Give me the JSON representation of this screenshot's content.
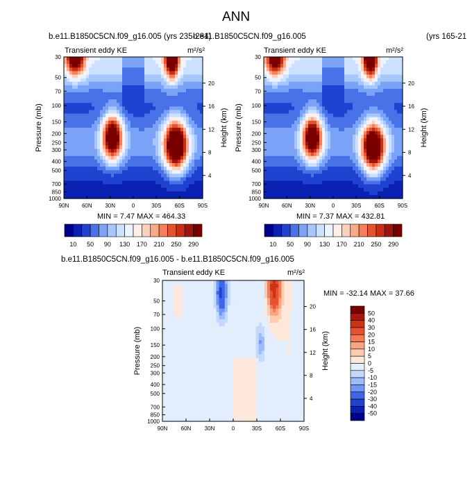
{
  "title": "ANN",
  "panels": [
    {
      "case_title": "b.e11.B1850C5CN.f09_g16.005 (yrs 235-284)",
      "field_label": "Transient eddy KE",
      "units": "m²/s²",
      "min_max": "MIN =   7.47  MAX = 464.33"
    },
    {
      "case_title": "b.e11.B1850C5CN.f09_g16.005",
      "case_title_right": "(yrs 165-21",
      "field_label": "Transient eddy KE",
      "units": "m²/s²",
      "min_max": "MIN =   7.37  MAX = 432.81"
    },
    {
      "case_title": "b.e11.B1850C5CN.f09_g16.005 - b.e11.B1850C5CN.f09_g16.005",
      "field_label": "Transient eddy KE",
      "units": "m²/s²",
      "min_max": "MIN = -32.14  MAX =  37.66"
    }
  ],
  "chart_data": [
    {
      "type": "heatmap",
      "title": "Transient eddy KE",
      "xlabel": "",
      "ylabel": "Pressure (mb)",
      "y2label": "Height (km)",
      "units": "m^2/s^2",
      "x_ticks": [
        "90N",
        "60N",
        "30N",
        "0",
        "30S",
        "60S",
        "90S"
      ],
      "y_ticks": [
        "30",
        "50",
        "70",
        "100",
        "150",
        "200",
        "250",
        "300",
        "400",
        "500",
        "700",
        "850",
        "1000"
      ],
      "y2_ticks": [
        "20",
        "16",
        "12",
        "8",
        "4"
      ],
      "levels": [
        10,
        30,
        50,
        70,
        90,
        110,
        130,
        150,
        170,
        190,
        210,
        230,
        250,
        270,
        290
      ],
      "colorbar_labels": [
        "10",
        "50",
        "90",
        "130",
        "170",
        "210",
        "250",
        "290"
      ],
      "features": [
        {
          "lat": 27,
          "pressure": 220,
          "value": 300
        },
        {
          "lat": -55,
          "pressure": 270,
          "value": 340
        },
        {
          "lat": -50,
          "pressure": 30,
          "value": 300
        },
        {
          "lat": 75,
          "pressure": 30,
          "value": 240
        }
      ],
      "min": 7.47,
      "max": 464.33
    },
    {
      "type": "heatmap",
      "title": "Transient eddy KE",
      "xlabel": "",
      "ylabel": "Pressure (mb)",
      "y2label": "Height (km)",
      "units": "m^2/s^2",
      "x_ticks": [
        "90N",
        "60N",
        "30N",
        "0",
        "30S",
        "60S",
        "90S"
      ],
      "y_ticks": [
        "30",
        "50",
        "70",
        "100",
        "150",
        "200",
        "250",
        "300",
        "400",
        "500",
        "700",
        "850",
        "1000"
      ],
      "y2_ticks": [
        "20",
        "16",
        "12",
        "8",
        "4"
      ],
      "levels": [
        10,
        30,
        50,
        70,
        90,
        110,
        130,
        150,
        170,
        190,
        210,
        230,
        250,
        270,
        290
      ],
      "colorbar_labels": [
        "10",
        "50",
        "90",
        "130",
        "170",
        "210",
        "250",
        "290"
      ],
      "features": [
        {
          "lat": 27,
          "pressure": 220,
          "value": 290
        },
        {
          "lat": -52,
          "pressure": 280,
          "value": 320
        },
        {
          "lat": -48,
          "pressure": 30,
          "value": 280
        },
        {
          "lat": 75,
          "pressure": 30,
          "value": 230
        }
      ],
      "min": 7.37,
      "max": 432.81
    },
    {
      "type": "heatmap",
      "title": "Transient eddy KE",
      "xlabel": "",
      "ylabel": "Pressure (mb)",
      "y2label": "Height (km)",
      "units": "m^2/s^2",
      "x_ticks": [
        "90N",
        "60N",
        "30N",
        "0",
        "30S",
        "60S",
        "90S"
      ],
      "y_ticks": [
        "30",
        "50",
        "70",
        "100",
        "150",
        "200",
        "250",
        "300",
        "400",
        "500",
        "700",
        "850",
        "1000"
      ],
      "y2_ticks": [
        "20",
        "16",
        "12",
        "8",
        "4"
      ],
      "levels": [
        -50,
        -40,
        -30,
        -20,
        -15,
        -10,
        -5,
        0,
        5,
        10,
        15,
        20,
        30,
        40,
        50
      ],
      "colorbar_labels": [
        "50",
        "40",
        "30",
        "20",
        "15",
        "10",
        "5",
        "0",
        "-5",
        "-10",
        "-15",
        "-20",
        "-30",
        "-40",
        "-50"
      ],
      "features": [
        {
          "lat": -52,
          "pressure": 35,
          "value": 37
        },
        {
          "lat": 15,
          "pressure": 40,
          "value": -32
        },
        {
          "lat": -35,
          "pressure": 140,
          "value": -12
        }
      ],
      "min": -32.14,
      "max": 37.66
    }
  ],
  "colors": {
    "abs_scale": [
      "#00008a",
      "#0a20b0",
      "#2042d0",
      "#4a72e8",
      "#7aa2f6",
      "#a6c6fc",
      "#cce0ff",
      "#eef4ff",
      "#fff0ea",
      "#fdd0bc",
      "#fca98a",
      "#f67e5a",
      "#e3532e",
      "#c82e14",
      "#a1140a",
      "#7a0000"
    ],
    "diff_scale": [
      "#00008a",
      "#0a20b0",
      "#2042d0",
      "#3f66e6",
      "#6f96f4",
      "#9bbcfb",
      "#c4d9fd",
      "#e2edfd",
      "#fde7da",
      "#fccbb0",
      "#f9a583",
      "#f47c55",
      "#e6532e",
      "#cc3314",
      "#a8170a",
      "#7a0000"
    ]
  }
}
